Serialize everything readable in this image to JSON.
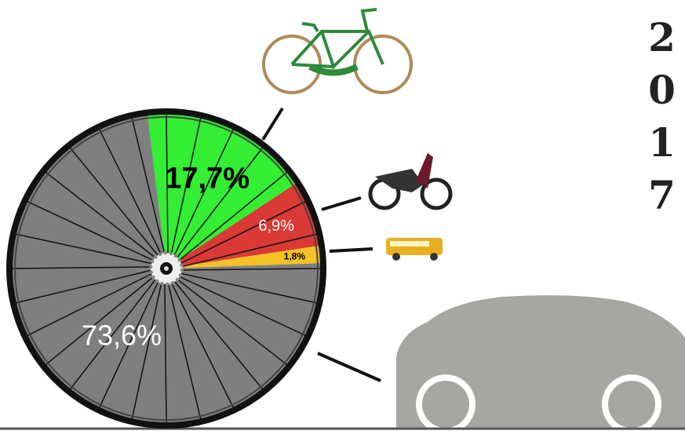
{
  "chart_data": {
    "type": "pie",
    "title": "2017",
    "values": [
      17.7,
      6.9,
      1.8,
      73.6
    ],
    "value_labels": [
      "17,7%",
      "6,9%",
      "1,8%",
      "73,6%"
    ],
    "colors": [
      "#33ee33",
      "#d93a35",
      "#f5c125",
      "#7f7f7f"
    ]
  }
}
